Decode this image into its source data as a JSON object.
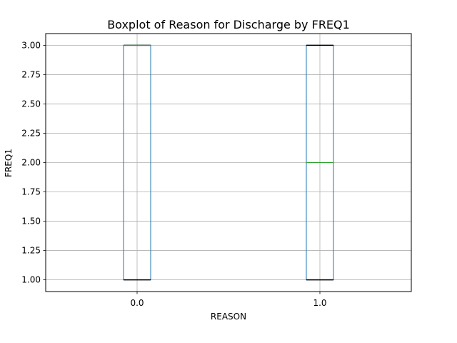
{
  "chart_data": {
    "type": "boxplot",
    "title": "Boxplot of Reason for Discharge by FREQ1",
    "xlabel": "REASON",
    "ylabel": "FREQ1",
    "categories": [
      "0.0",
      "1.0"
    ],
    "boxes": [
      {
        "category": "0.0",
        "whisker_low": 1.0,
        "q1": 1.0,
        "median": 3.0,
        "q3": 3.0,
        "whisker_high": 3.0
      },
      {
        "category": "1.0",
        "whisker_low": 1.0,
        "q1": 1.0,
        "median": 2.0,
        "q3": 3.0,
        "whisker_high": 3.0
      }
    ],
    "ylim": [
      0.9,
      3.1
    ],
    "yticks": [
      "1.00",
      "1.25",
      "1.50",
      "1.75",
      "2.00",
      "2.25",
      "2.50",
      "2.75",
      "3.00"
    ],
    "grid": true,
    "colors": {
      "box": "#1f77b4",
      "median": "#2ca02c",
      "whisker_cap": "#000000",
      "grid": "#b0b0b0"
    }
  }
}
